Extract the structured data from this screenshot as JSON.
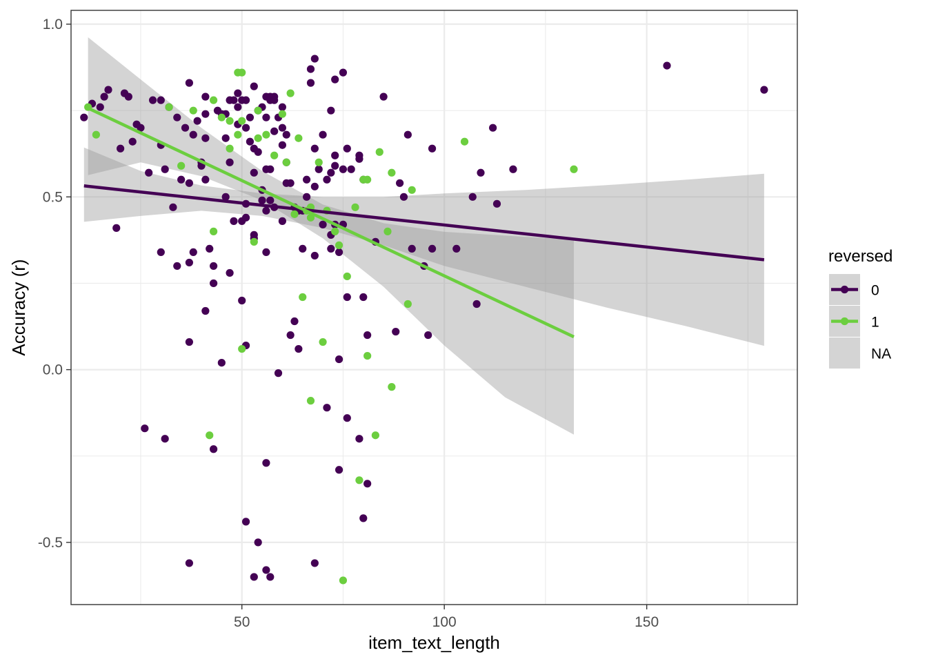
{
  "chart_data": {
    "type": "scatter",
    "xlabel": "item_text_length",
    "ylabel": "Accuracy (r)",
    "xlim": [
      7.8,
      187.2
    ],
    "ylim": [
      -0.68,
      1.04
    ],
    "x_ticks": [
      50,
      100,
      150
    ],
    "x_tick_labels": [
      "50",
      "100",
      "150"
    ],
    "y_ticks": [
      -0.5,
      0.0,
      0.5,
      1.0
    ],
    "y_tick_labels": [
      "-0.5",
      "0.0",
      "0.5",
      "1.0"
    ],
    "grid": true,
    "legend": {
      "title": "reversed",
      "position": "right",
      "entries": [
        "0",
        "1",
        "NA"
      ]
    },
    "colors": {
      "series_0": "#440154",
      "series_1": "#6cce3f",
      "ribbon": "#999999",
      "grid": "#ebebeb",
      "panel_border": "#333333"
    },
    "series": [
      {
        "name": "0",
        "points": [
          [
            11,
            0.73
          ],
          [
            13,
            0.77
          ],
          [
            15,
            0.76
          ],
          [
            16,
            0.79
          ],
          [
            17,
            0.81
          ],
          [
            20,
            0.64
          ],
          [
            19,
            0.41
          ],
          [
            21,
            0.8
          ],
          [
            22,
            0.79
          ],
          [
            23,
            0.66
          ],
          [
            24,
            0.71
          ],
          [
            25,
            0.7
          ],
          [
            26,
            -0.17
          ],
          [
            27,
            0.57
          ],
          [
            28,
            0.78
          ],
          [
            30,
            0.78
          ],
          [
            30,
            0.65
          ],
          [
            30,
            0.34
          ],
          [
            31,
            0.58
          ],
          [
            31,
            -0.2
          ],
          [
            32,
            0.76
          ],
          [
            33,
            0.47
          ],
          [
            34,
            0.73
          ],
          [
            34,
            0.3
          ],
          [
            35,
            0.55
          ],
          [
            36,
            0.7
          ],
          [
            37,
            0.83
          ],
          [
            37,
            0.54
          ],
          [
            37,
            0.31
          ],
          [
            37,
            0.08
          ],
          [
            37,
            -0.56
          ],
          [
            38,
            0.68
          ],
          [
            38,
            0.34
          ],
          [
            39,
            0.72
          ],
          [
            40,
            0.6
          ],
          [
            40,
            0.59
          ],
          [
            41,
            0.67
          ],
          [
            41,
            0.55
          ],
          [
            41,
            0.79
          ],
          [
            41,
            0.74
          ],
          [
            41,
            0.17
          ],
          [
            42,
            0.35
          ],
          [
            43,
            0.3
          ],
          [
            43,
            0.25
          ],
          [
            43,
            -0.23
          ],
          [
            44,
            0.75
          ],
          [
            45,
            0.74
          ],
          [
            45,
            0.02
          ],
          [
            46,
            0.74
          ],
          [
            46,
            0.67
          ],
          [
            46,
            0.5
          ],
          [
            47,
            0.78
          ],
          [
            47,
            0.6
          ],
          [
            47,
            0.28
          ],
          [
            48,
            0.78
          ],
          [
            48,
            0.43
          ],
          [
            49,
            0.8
          ],
          [
            49,
            0.71
          ],
          [
            49,
            0.76
          ],
          [
            50,
            0.78
          ],
          [
            50,
            0.43
          ],
          [
            50,
            0.2
          ],
          [
            51,
            0.78
          ],
          [
            51,
            0.7
          ],
          [
            51,
            0.48
          ],
          [
            51,
            0.44
          ],
          [
            51,
            0.07
          ],
          [
            51,
            -0.44
          ],
          [
            52,
            0.73
          ],
          [
            52,
            0.66
          ],
          [
            53,
            0.82
          ],
          [
            53,
            0.64
          ],
          [
            53,
            0.57
          ],
          [
            53,
            0.39
          ],
          [
            53,
            0.38
          ],
          [
            53,
            -0.6
          ],
          [
            54,
            0.75
          ],
          [
            54,
            0.63
          ],
          [
            54,
            -0.5
          ],
          [
            55,
            0.76
          ],
          [
            55,
            0.52
          ],
          [
            55,
            0.49
          ],
          [
            56,
            0.79
          ],
          [
            56,
            0.73
          ],
          [
            56,
            0.58
          ],
          [
            56,
            0.46
          ],
          [
            56,
            0.34
          ],
          [
            56,
            -0.27
          ],
          [
            56,
            -0.58
          ],
          [
            57,
            0.78
          ],
          [
            57,
            0.79
          ],
          [
            57,
            0.58
          ],
          [
            57,
            0.49
          ],
          [
            57,
            -0.6
          ],
          [
            58,
            0.79
          ],
          [
            58,
            0.78
          ],
          [
            58,
            0.69
          ],
          [
            58,
            0.47
          ],
          [
            59,
            0.73
          ],
          [
            59,
            -0.01
          ],
          [
            60,
            0.76
          ],
          [
            60,
            0.7
          ],
          [
            60,
            0.65
          ],
          [
            60,
            0.43
          ],
          [
            61,
            0.68
          ],
          [
            61,
            0.6
          ],
          [
            61,
            0.54
          ],
          [
            62,
            0.54
          ],
          [
            62,
            0.1
          ],
          [
            63,
            0.14
          ],
          [
            63,
            0.47
          ],
          [
            64,
            0.06
          ],
          [
            64,
            0.46
          ],
          [
            65,
            0.35
          ],
          [
            65,
            0.46
          ],
          [
            66,
            0.55
          ],
          [
            66,
            0.5
          ],
          [
            67,
            0.83
          ],
          [
            67,
            0.87
          ],
          [
            68,
            0.9
          ],
          [
            68,
            0.64
          ],
          [
            68,
            0.53
          ],
          [
            68,
            0.33
          ],
          [
            68,
            -0.56
          ],
          [
            69,
            0.58
          ],
          [
            70,
            0.68
          ],
          [
            70,
            0.42
          ],
          [
            71,
            0.55
          ],
          [
            71,
            -0.11
          ],
          [
            72,
            0.75
          ],
          [
            72,
            0.57
          ],
          [
            72,
            0.39
          ],
          [
            72,
            0.35
          ],
          [
            73,
            0.84
          ],
          [
            73,
            0.62
          ],
          [
            73,
            0.59
          ],
          [
            73,
            0.42
          ],
          [
            74,
            0.34
          ],
          [
            74,
            0.03
          ],
          [
            74,
            -0.29
          ],
          [
            75,
            0.86
          ],
          [
            75,
            0.42
          ],
          [
            75,
            0.58
          ],
          [
            76,
            0.64
          ],
          [
            76,
            0.21
          ],
          [
            76,
            -0.14
          ],
          [
            77,
            0.58
          ],
          [
            79,
            0.62
          ],
          [
            79,
            0.61
          ],
          [
            79,
            -0.2
          ],
          [
            80,
            0.55
          ],
          [
            80,
            0.21
          ],
          [
            80,
            -0.43
          ],
          [
            81,
            0.1
          ],
          [
            81,
            -0.33
          ],
          [
            83,
            0.37
          ],
          [
            85,
            0.79
          ],
          [
            88,
            0.11
          ],
          [
            89,
            0.54
          ],
          [
            90,
            0.5
          ],
          [
            91,
            0.68
          ],
          [
            92,
            0.35
          ],
          [
            95,
            0.3
          ],
          [
            96,
            0.1
          ],
          [
            97,
            0.64
          ],
          [
            97,
            0.35
          ],
          [
            103,
            0.35
          ],
          [
            107,
            0.5
          ],
          [
            108,
            0.19
          ],
          [
            109,
            0.57
          ],
          [
            112,
            0.7
          ],
          [
            113,
            0.48
          ],
          [
            117,
            0.58
          ],
          [
            155,
            0.88
          ],
          [
            179,
            0.81
          ]
        ]
      },
      {
        "name": "1",
        "points": [
          [
            12,
            0.76
          ],
          [
            14,
            0.68
          ],
          [
            32,
            0.76
          ],
          [
            35,
            0.59
          ],
          [
            38,
            0.75
          ],
          [
            42,
            -0.19
          ],
          [
            43,
            0.78
          ],
          [
            43,
            0.4
          ],
          [
            45,
            0.73
          ],
          [
            47,
            0.72
          ],
          [
            47,
            0.64
          ],
          [
            49,
            0.86
          ],
          [
            49,
            0.68
          ],
          [
            50,
            0.86
          ],
          [
            50,
            0.72
          ],
          [
            53,
            0.37
          ],
          [
            54,
            0.75
          ],
          [
            54,
            0.67
          ],
          [
            56,
            0.68
          ],
          [
            58,
            0.62
          ],
          [
            60,
            0.74
          ],
          [
            61,
            0.6
          ],
          [
            62,
            0.8
          ],
          [
            63,
            0.45
          ],
          [
            64,
            0.67
          ],
          [
            65,
            0.21
          ],
          [
            66,
            0.46
          ],
          [
            67,
            0.47
          ],
          [
            67,
            0.44
          ],
          [
            67,
            -0.09
          ],
          [
            69,
            0.6
          ],
          [
            70,
            0.08
          ],
          [
            71,
            0.46
          ],
          [
            73,
            0.4
          ],
          [
            74,
            0.36
          ],
          [
            75,
            -0.61
          ],
          [
            76,
            0.27
          ],
          [
            78,
            0.47
          ],
          [
            79,
            -0.32
          ],
          [
            80,
            0.55
          ],
          [
            81,
            0.55
          ],
          [
            81,
            0.04
          ],
          [
            83,
            -0.19
          ],
          [
            84,
            0.63
          ],
          [
            86,
            0.4
          ],
          [
            87,
            0.57
          ],
          [
            87,
            -0.05
          ],
          [
            91,
            0.19
          ],
          [
            92,
            0.52
          ],
          [
            105,
            0.66
          ],
          [
            132,
            0.58
          ],
          [
            50,
            0.06
          ]
        ]
      }
    ],
    "fits": [
      {
        "series": "0",
        "x": [
          11,
          179
        ],
        "y": [
          0.532,
          0.318
        ],
        "band_x": [
          11,
          25,
          40,
          55,
          70,
          85,
          100,
          120,
          140,
          160,
          179
        ],
        "band_upper": [
          0.643,
          0.575,
          0.533,
          0.51,
          0.5,
          0.5,
          0.51,
          0.52,
          0.534,
          0.55,
          0.567
        ],
        "band_lower": [
          0.428,
          0.445,
          0.46,
          0.445,
          0.41,
          0.36,
          0.3,
          0.24,
          0.18,
          0.125,
          0.069
        ]
      },
      {
        "series": "1",
        "x": [
          12,
          132
        ],
        "y": [
          0.757,
          0.095
        ],
        "band_x": [
          12,
          25,
          40,
          55,
          70,
          85,
          100,
          115,
          132
        ],
        "band_upper": [
          0.962,
          0.84,
          0.7,
          0.575,
          0.478,
          0.424,
          0.399,
          0.388,
          0.376
        ],
        "band_lower": [
          0.563,
          0.6,
          0.56,
          0.49,
          0.38,
          0.24,
          0.07,
          -0.08,
          -0.188
        ]
      }
    ]
  }
}
